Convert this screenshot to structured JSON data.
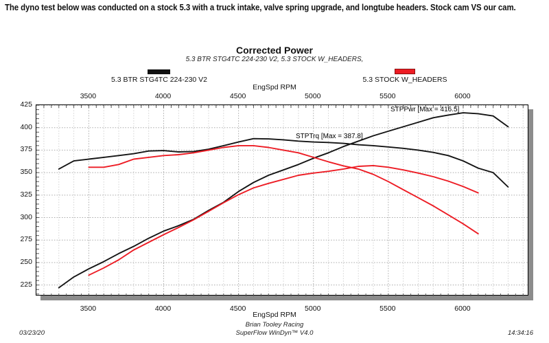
{
  "header": {
    "note": "The dyno test below was conducted on a stock 5.3 with a truck intake, valve spring upgrade, and longtube headers. Stock cam VS our cam."
  },
  "chart": {
    "title": "Corrected Power",
    "subtitle": "5.3 BTR STG4TC 224-230 V2, 5.3 STOCK W_HEADERS,",
    "axis_title_top": "EngSpd RPM",
    "axis_title_bottom": "EngSpd RPM",
    "legend": [
      {
        "label": "5.3 BTR STG4TC 224-230 V2",
        "color": "#111111"
      },
      {
        "label": "5.3 STOCK W_HEADERS",
        "color": "#ed1c24"
      }
    ],
    "annotations": [
      {
        "text": "STPPwr [Max = 416.5]"
      },
      {
        "text": "STPTrq [Max = 387.8]"
      }
    ]
  },
  "chart_data": {
    "type": "line",
    "title": "Corrected Power",
    "xlabel": "EngSpd RPM",
    "ylabel": "",
    "xlim": [
      3150,
      6440
    ],
    "ylim": [
      212.5,
      425
    ],
    "x_ticks": [
      3500,
      4000,
      4500,
      5000,
      5500,
      6000
    ],
    "y_ticks": [
      225,
      250,
      275,
      300,
      325,
      350,
      375,
      400,
      425
    ],
    "grid": "dotted; vertical minor every 100 RPM, vertical major every 500 RPM, horizontal every 25",
    "legend_position": "above-chart",
    "series": [
      {
        "name": "STPPwr 5.3 BTR STG4TC 224-230 V2",
        "quantity": "power",
        "color": "#141414",
        "max": 416.5,
        "x": [
          3300,
          3400,
          3500,
          3600,
          3700,
          3800,
          3900,
          4000,
          4100,
          4200,
          4300,
          4400,
          4500,
          4600,
          4700,
          4800,
          4900,
          5000,
          5100,
          5200,
          5300,
          5400,
          5500,
          5600,
          5700,
          5800,
          5900,
          6000,
          6100,
          6200,
          6300
        ],
        "values": [
          222,
          234,
          243,
          251,
          260,
          268,
          277,
          285,
          291,
          298,
          308,
          317,
          329,
          339,
          347,
          353,
          359,
          366,
          372,
          379,
          385,
          391,
          396,
          401,
          406,
          411,
          414,
          416.5,
          415.5,
          413,
          401
        ]
      },
      {
        "name": "STPTrq 5.3 BTR STG4TC 224-230 V2",
        "quantity": "torque",
        "color": "#141414",
        "max": 387.8,
        "x": [
          3300,
          3400,
          3500,
          3600,
          3700,
          3800,
          3900,
          4000,
          4100,
          4200,
          4300,
          4400,
          4500,
          4600,
          4700,
          4800,
          4900,
          5000,
          5100,
          5200,
          5300,
          5400,
          5500,
          5600,
          5700,
          5800,
          5900,
          6000,
          6100,
          6200,
          6300
        ],
        "values": [
          354,
          363,
          365,
          367,
          369,
          371,
          374,
          374.5,
          373,
          373.5,
          376,
          380,
          384,
          387.8,
          387.5,
          386.5,
          385,
          384,
          383.5,
          382.5,
          381,
          380,
          378.5,
          377,
          375,
          372.5,
          369,
          363,
          355,
          350,
          334
        ]
      },
      {
        "name": "STPPwr 5.3 STOCK W_HEADERS",
        "quantity": "power",
        "color": "#ed1c24",
        "x": [
          3500,
          3600,
          3700,
          3800,
          3900,
          4000,
          4100,
          4200,
          4300,
          4400,
          4500,
          4600,
          4700,
          4800,
          4900,
          5000,
          5100,
          5200,
          5300,
          5400,
          5500,
          5600,
          5700,
          5800,
          5900,
          6000,
          6100
        ],
        "values": [
          236,
          244,
          253,
          264,
          272.5,
          281,
          289,
          297.5,
          307,
          316.5,
          325.5,
          333,
          338,
          342.5,
          347,
          349.5,
          351.5,
          354,
          357,
          357.8,
          356,
          353,
          349.5,
          345.5,
          340.5,
          334.5,
          327.5
        ]
      },
      {
        "name": "STPTrq 5.3 STOCK W_HEADERS",
        "quantity": "torque",
        "color": "#ed1c24",
        "x": [
          3500,
          3600,
          3700,
          3800,
          3900,
          4000,
          4100,
          4200,
          4300,
          4400,
          4500,
          4600,
          4700,
          4800,
          4900,
          5000,
          5100,
          5200,
          5300,
          5400,
          5500,
          5600,
          5700,
          5800,
          5900,
          6000,
          6100
        ],
        "values": [
          356,
          356,
          359,
          365,
          367,
          369,
          370,
          372,
          375,
          378,
          380,
          380,
          378,
          375,
          372,
          367,
          362,
          357.5,
          354,
          348,
          340,
          331,
          322,
          313,
          303,
          293,
          282
        ]
      }
    ]
  },
  "footer": {
    "date": "03/23/20",
    "org": "Brian Tooley Racing",
    "software": "SuperFlow WinDyn™ V4.0",
    "time": "14:34:16"
  }
}
